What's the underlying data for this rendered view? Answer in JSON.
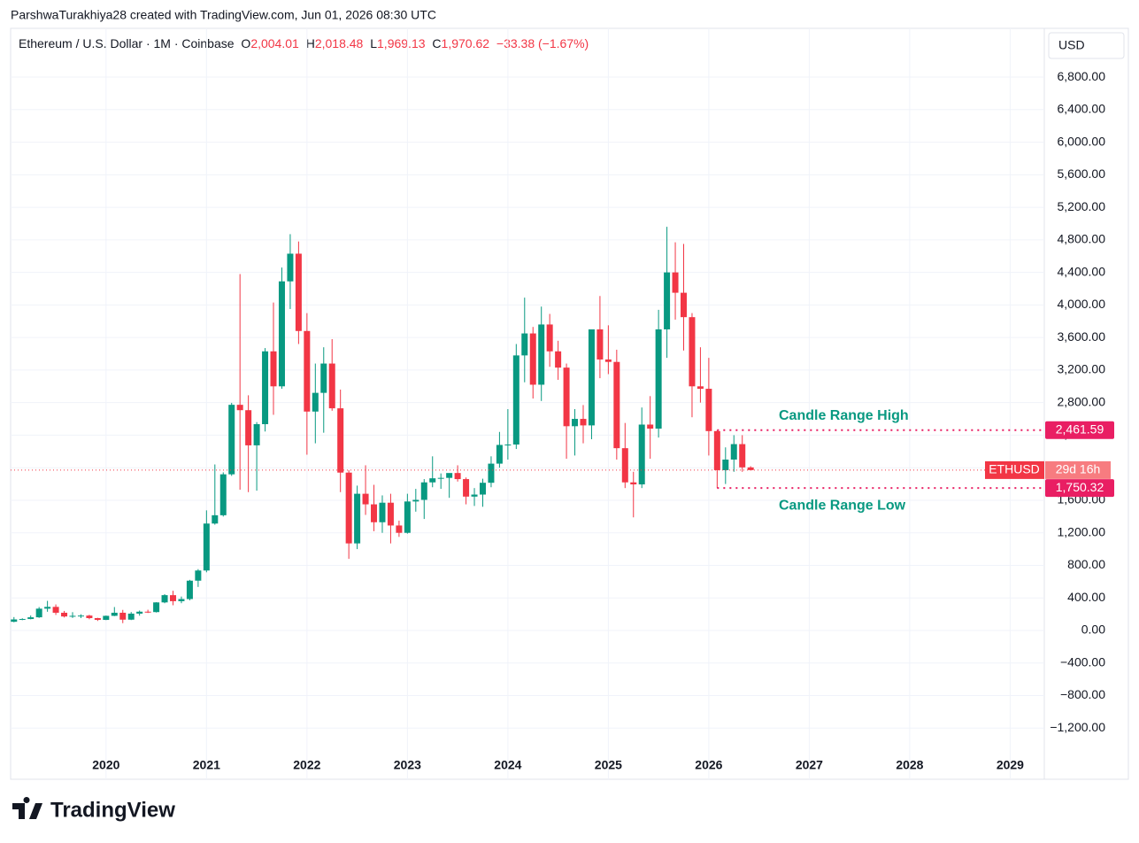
{
  "header": {
    "credit": "ParshwaTurakhiya28 created with TradingView.com, Jun 01, 2026 08:30 UTC",
    "symbol": "Ethereum / U.S. Dollar · 1M · Coinbase",
    "ohlc": [
      {
        "key": "O",
        "value": "2,004.01"
      },
      {
        "key": "H",
        "value": "2,018.48"
      },
      {
        "key": "L",
        "value": "1,969.13"
      },
      {
        "key": "C",
        "value": "1,970.62"
      }
    ],
    "change": "−33.38 (−1.67%)",
    "currency": "USD"
  },
  "logo": "TradingView",
  "chart_data": {
    "type": "candlestick",
    "up_color": "#089981",
    "down_color": "#f23645",
    "x": [
      "2019-02",
      "2019-03",
      "2019-04",
      "2019-05",
      "2019-06",
      "2019-07",
      "2019-08",
      "2019-09",
      "2019-10",
      "2019-11",
      "2019-12",
      "2020-01",
      "2020-02",
      "2020-03",
      "2020-04",
      "2020-05",
      "2020-06",
      "2020-07",
      "2020-08",
      "2020-09",
      "2020-10",
      "2020-11",
      "2020-12",
      "2021-01",
      "2021-02",
      "2021-03",
      "2021-04",
      "2021-05",
      "2021-06",
      "2021-07",
      "2021-08",
      "2021-09",
      "2021-10",
      "2021-11",
      "2021-12",
      "2022-01",
      "2022-02",
      "2022-03",
      "2022-04",
      "2022-05",
      "2022-06",
      "2022-07",
      "2022-08",
      "2022-09",
      "2022-10",
      "2022-11",
      "2022-12",
      "2023-01",
      "2023-02",
      "2023-03",
      "2023-04",
      "2023-05",
      "2023-06",
      "2023-07",
      "2023-08",
      "2023-09",
      "2023-10",
      "2023-11",
      "2023-12",
      "2024-01",
      "2024-02",
      "2024-03",
      "2024-04",
      "2024-05",
      "2024-06",
      "2024-07",
      "2024-08",
      "2024-09",
      "2024-10",
      "2024-11",
      "2024-12",
      "2025-01",
      "2025-02",
      "2025-03",
      "2025-04",
      "2025-05",
      "2025-06",
      "2025-07",
      "2025-08",
      "2025-09",
      "2025-10",
      "2025-11",
      "2025-12",
      "2026-01",
      "2026-02",
      "2026-03",
      "2026-04",
      "2026-05",
      "2026-06"
    ],
    "open": [
      107,
      136,
      141,
      162,
      268,
      290,
      218,
      172,
      180,
      183,
      152,
      130,
      180,
      218,
      133,
      207,
      231,
      226,
      345,
      434,
      360,
      386,
      612,
      737,
      1314,
      1416,
      1919,
      2773,
      2707,
      2275,
      2535,
      3430,
      3000,
      4290,
      4630,
      3680,
      2690,
      2920,
      3280,
      2730,
      1940,
      1070,
      1680,
      1550,
      1330,
      1570,
      1290,
      1200,
      1585,
      1605,
      1820,
      1870,
      1875,
      1935,
      1860,
      1645,
      1670,
      1815,
      2050,
      2280,
      2285,
      3380,
      3650,
      3020,
      3760,
      3430,
      3230,
      2510,
      2600,
      2520,
      3700,
      3330,
      3300,
      2240,
      1820,
      1795,
      2530,
      2480,
      3700,
      4400,
      4150,
      3850,
      3000,
      2970,
      2450,
      1970,
      2100,
      2290,
      2004.01
    ],
    "high": [
      165,
      150,
      184,
      288,
      364,
      320,
      240,
      225,
      199,
      193,
      156,
      183,
      288,
      253,
      227,
      245,
      255,
      347,
      446,
      488,
      417,
      622,
      754,
      1476,
      2040,
      1943,
      2797,
      4380,
      2890,
      2560,
      3470,
      4030,
      4460,
      4870,
      4780,
      3900,
      3280,
      3480,
      3580,
      2960,
      1970,
      1780,
      2030,
      1790,
      1660,
      1680,
      1350,
      1680,
      1740,
      1860,
      2140,
      1930,
      1930,
      2030,
      1880,
      1750,
      1865,
      2140,
      2440,
      2720,
      3520,
      4090,
      3730,
      3980,
      3890,
      3560,
      3280,
      2720,
      2770,
      3670,
      4110,
      3750,
      3450,
      2550,
      1950,
      2740,
      2880,
      3940,
      4960,
      4770,
      4750,
      3900,
      3480,
      3350,
      2461.59,
      2250,
      2400,
      2400,
      2018.48
    ],
    "low": [
      101,
      127,
      137,
      155,
      230,
      191,
      160,
      154,
      152,
      138,
      117,
      128,
      176,
      90,
      128,
      182,
      215,
      221,
      335,
      310,
      335,
      371,
      535,
      715,
      1300,
      1400,
      1900,
      1730,
      1700,
      1718,
      2445,
      2650,
      2970,
      3950,
      3520,
      2160,
      2300,
      2430,
      2700,
      1700,
      880,
      1000,
      1420,
      1220,
      1200,
      1070,
      1150,
      1190,
      1460,
      1370,
      1760,
      1740,
      1630,
      1830,
      1550,
      1530,
      1520,
      1760,
      2000,
      2100,
      2230,
      3050,
      2850,
      2820,
      3240,
      3080,
      2110,
      2150,
      2300,
      2350,
      3100,
      3150,
      2100,
      1750,
      1390,
      1750,
      2110,
      2370,
      3350,
      3820,
      3440,
      2620,
      2800,
      2150,
      1750.32,
      1800,
      1950,
      1950,
      1969.13
    ],
    "close": [
      136,
      141,
      162,
      268,
      290,
      218,
      172,
      180,
      183,
      152,
      130,
      180,
      218,
      133,
      207,
      231,
      226,
      345,
      434,
      360,
      386,
      612,
      737,
      1314,
      1416,
      1919,
      2773,
      2707,
      2275,
      2535,
      3430,
      3000,
      4290,
      4630,
      3680,
      2690,
      2920,
      3280,
      2730,
      1940,
      1070,
      1680,
      1550,
      1330,
      1570,
      1290,
      1200,
      1585,
      1605,
      1820,
      1870,
      1875,
      1935,
      1860,
      1645,
      1670,
      1815,
      2050,
      2280,
      2285,
      3380,
      3650,
      3020,
      3760,
      3430,
      3230,
      2510,
      2600,
      2520,
      3700,
      3330,
      3300,
      2240,
      1820,
      1795,
      2530,
      2480,
      3700,
      4400,
      4150,
      3850,
      3000,
      2970,
      2450,
      1970,
      2100,
      2290,
      2004.01,
      1970.62
    ],
    "xlim": [
      2019.05,
      2029.34
    ],
    "xticks": [
      2020,
      2021,
      2022,
      2023,
      2024,
      2025,
      2026,
      2027,
      2028,
      2029
    ],
    "ylim": [
      -1828,
      7399
    ],
    "yticks": [
      {
        "value": -1200,
        "label": "−1,200.00"
      },
      {
        "value": -800,
        "label": "−800.00"
      },
      {
        "value": -400,
        "label": "−400.00"
      },
      {
        "value": 0,
        "label": "0.00"
      },
      {
        "value": 400,
        "label": "400.00"
      },
      {
        "value": 800,
        "label": "800.00"
      },
      {
        "value": 1200,
        "label": "1,200.00"
      },
      {
        "value": 1600,
        "label": "1,600.00"
      },
      {
        "value": 2000,
        "label": "2,000.00"
      },
      {
        "value": 2400,
        "label": "2,400.00"
      },
      {
        "value": 2800,
        "label": "2,800.00"
      },
      {
        "value": 3200,
        "label": "3,200.00"
      },
      {
        "value": 3600,
        "label": "3,600.00"
      },
      {
        "value": 4000,
        "label": "4,000.00"
      },
      {
        "value": 4400,
        "label": "4,400.00"
      },
      {
        "value": 4800,
        "label": "4,800.00"
      },
      {
        "value": 5200,
        "label": "5,200.00"
      },
      {
        "value": 5600,
        "label": "5,600.00"
      },
      {
        "value": 6000,
        "label": "6,000.00"
      },
      {
        "value": 6400,
        "label": "6,400.00"
      },
      {
        "value": 6800,
        "label": "6,800.00"
      }
    ],
    "grid": true,
    "price_tag": {
      "symbol": "ETHUSD",
      "countdown": "29d 16h"
    },
    "annotations": [
      {
        "text": "Candle Range High",
        "value": 2461.59,
        "label": "2,461.59"
      },
      {
        "text": "Candle Range Low",
        "value": 1750.32,
        "label": "1,750.32"
      }
    ]
  }
}
